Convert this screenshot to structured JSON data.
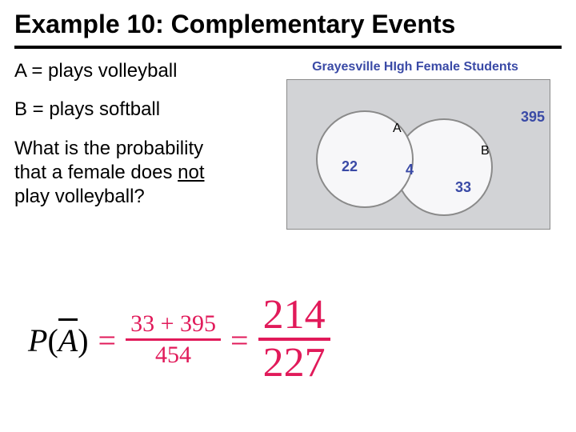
{
  "title": "Example 10:  Complementary Events",
  "definitions": {
    "a": "A = plays volleyball",
    "b": "B = plays softball"
  },
  "question": {
    "line1": "What is the probability",
    "line2_pre": "that a female does ",
    "line2_u": "not",
    "line3": "play volleyball?"
  },
  "venn": {
    "title": "Grayesville HIgh Female Students",
    "label_a": "A",
    "label_b": "B",
    "value_a_only": "22",
    "value_intersection": "4",
    "value_b_only": "33",
    "value_outside": "395",
    "circle_fill": "#f7f7f9",
    "box_fill": "#d2d3d6",
    "border_color": "#8a8a8a",
    "text_color": "#3a4aa6"
  },
  "equation": {
    "lhs_p": "P",
    "lhs_a": "A",
    "eq": "=",
    "frac1_num": "33 + 395",
    "frac1_den": "454",
    "frac2_num": "214",
    "frac2_den": "227",
    "color": "#e11a5a"
  }
}
